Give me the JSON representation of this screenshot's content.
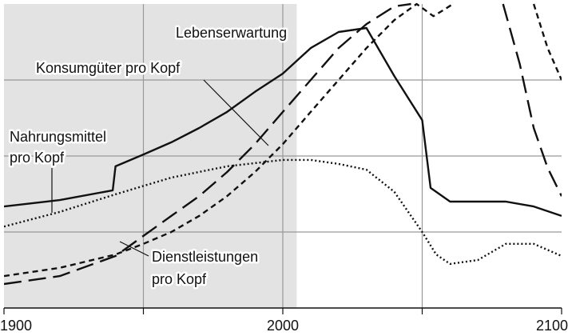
{
  "chart_data": {
    "type": "line",
    "xlim": [
      1900,
      2100
    ],
    "ylim": [
      0,
      100
    ],
    "xticks": [
      1900,
      2000,
      2100
    ],
    "minor_xticks": [
      1950,
      2050
    ],
    "ygrid": [
      25,
      50,
      75
    ],
    "shade_x": [
      1900,
      2005
    ],
    "series": [
      {
        "name": "Lebenserwartung",
        "color": "#111111",
        "dash": "solid",
        "x": [
          1900,
          1920,
          1939,
          1940,
          1950,
          1960,
          1970,
          1980,
          1990,
          2000,
          2010,
          2020,
          2030,
          2040,
          2050,
          2053,
          2060,
          2080,
          2090,
          2100
        ],
        "values": [
          33.4,
          35.5,
          38.7,
          46.6,
          50.5,
          54.5,
          59.2,
          64.5,
          71.1,
          77.1,
          85.5,
          90.8,
          92.1,
          76.3,
          61.8,
          39.5,
          35,
          35,
          33.4,
          30.3
        ]
      },
      {
        "name": "Konsumgüter pro Kopf",
        "color": "#111111",
        "dash": "long",
        "x": [
          1900,
          1920,
          1940,
          1950,
          1960,
          1970,
          1980,
          1990,
          2000,
          2010,
          2020,
          2030,
          2040,
          2046,
          2060,
          2079,
          2085,
          2090,
          2095,
          2100
        ],
        "values": [
          7.9,
          10.5,
          17.1,
          23.7,
          30.3,
          36.8,
          44.7,
          53.9,
          64.5,
          75,
          85.5,
          93.4,
          99.2,
          100,
          null,
          100,
          80.3,
          59.2,
          46.1,
          36.8
        ]
      },
      {
        "name": "Dienstleistungen pro Kopf",
        "color": "#111111",
        "dash": "short",
        "x": [
          1900,
          1920,
          1940,
          1950,
          1960,
          1970,
          1980,
          1990,
          2000,
          2010,
          2020,
          2030,
          2040,
          2048,
          2050,
          2054,
          2058,
          2061,
          2075,
          2090,
          2095,
          2100
        ],
        "values": [
          10.5,
          13.2,
          17.6,
          21.1,
          25,
          30.3,
          36.8,
          44.7,
          53.9,
          64.5,
          75,
          85.5,
          94.7,
          100,
          98.7,
          96,
          98.2,
          100,
          null,
          100,
          85.5,
          75
        ]
      },
      {
        "name": "Nahrungsmittel pro Kopf",
        "color": "#111111",
        "dash": "dotted",
        "x": [
          1900,
          1920,
          1940,
          1960,
          1980,
          2000,
          2010,
          2020,
          2030,
          2040,
          2050,
          2055,
          2060,
          2070,
          2080,
          2090,
          2100
        ],
        "values": [
          26.8,
          31.6,
          37.4,
          42.9,
          46.6,
          48.7,
          48.7,
          47.4,
          45.5,
          38.2,
          25,
          17.6,
          14.5,
          15.8,
          21.1,
          21.1,
          17.1
        ]
      }
    ],
    "annotations": [
      {
        "lines": [
          "Lebenserwartung"
        ]
      },
      {
        "lines": [
          "Konsumgüter pro Kopf"
        ]
      },
      {
        "lines": [
          "Nahrungsmittel",
          "pro Kopf"
        ]
      },
      {
        "lines": [
          "Dienstleistungen",
          "pro Kopf"
        ]
      }
    ]
  }
}
